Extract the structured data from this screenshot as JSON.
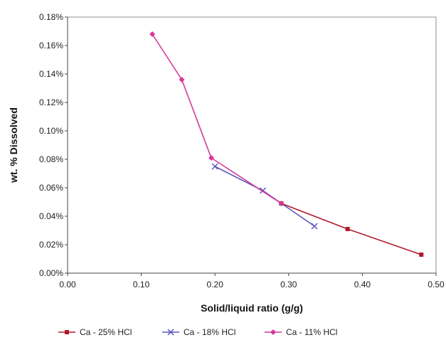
{
  "chart_data": {
    "type": "line",
    "xlabel": "Solid/liquid ratio (g/g)",
    "ylabel": "wt. % Dissolved",
    "xlim": [
      0,
      0.5
    ],
    "ylim": [
      0,
      0.18
    ],
    "x_ticks": [
      "0.00",
      "0.10",
      "0.20",
      "0.30",
      "0.40",
      "0.50"
    ],
    "y_ticks": [
      "0.00%",
      "0.02%",
      "0.04%",
      "0.06%",
      "0.08%",
      "0.10%",
      "0.12%",
      "0.14%",
      "0.16%",
      "0.18%"
    ],
    "grid": false,
    "legend_position": "bottom",
    "series": [
      {
        "name": "Ca - 25% HCl",
        "color": "#b2182b",
        "marker": "square",
        "points": [
          [
            0.29,
            0.049
          ],
          [
            0.38,
            0.031
          ],
          [
            0.48,
            0.013
          ]
        ]
      },
      {
        "name": "Ca - 18% HCl",
        "color": "#5b57b8",
        "marker": "x",
        "points": [
          [
            0.2,
            0.075
          ],
          [
            0.265,
            0.058
          ],
          [
            0.335,
            0.033
          ]
        ]
      },
      {
        "name": "Ca - 11% HCl",
        "color": "#d4389a",
        "marker": "diamond",
        "points": [
          [
            0.115,
            0.168
          ],
          [
            0.155,
            0.136
          ],
          [
            0.195,
            0.081
          ],
          [
            0.29,
            0.049
          ]
        ]
      }
    ]
  }
}
